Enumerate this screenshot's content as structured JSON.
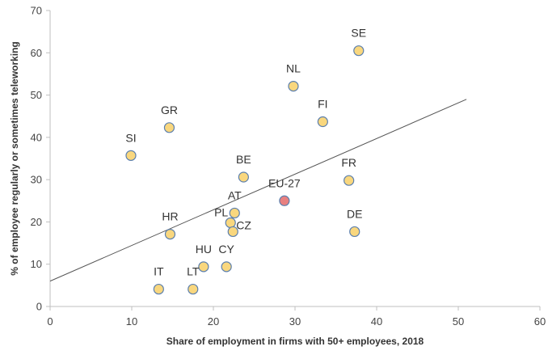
{
  "chart_data": {
    "type": "scatter",
    "title": "",
    "xlabel": "Share of employment in firms with 50+ employees, 2018",
    "ylabel": "% of employee regularly or sometimes teleworking",
    "xlim": [
      0,
      60
    ],
    "ylim": [
      0,
      70
    ],
    "xticks": [
      "0",
      "10",
      "20",
      "30",
      "40",
      "50",
      "60"
    ],
    "yticks": [
      "0",
      "10",
      "20",
      "30",
      "40",
      "50",
      "60",
      "70"
    ],
    "grid": false,
    "legend": "none",
    "colors": {
      "point_fill": "#f9d77e",
      "point_stroke": "#5b7fae",
      "highlight_fill": "#e88080",
      "highlight_label": "#e8262a",
      "label": "#333333",
      "trendline": "#555555",
      "axis": "#bfbfbf"
    },
    "points": [
      {
        "label": "SE",
        "x": 37.8,
        "y": 60.5
      },
      {
        "label": "NL",
        "x": 29.8,
        "y": 52.1
      },
      {
        "label": "FI",
        "x": 33.4,
        "y": 43.7
      },
      {
        "label": "GR",
        "x": 14.6,
        "y": 42.3
      },
      {
        "label": "SI",
        "x": 9.9,
        "y": 35.7
      },
      {
        "label": "BE",
        "x": 23.7,
        "y": 30.6
      },
      {
        "label": "FR",
        "x": 36.6,
        "y": 29.8
      },
      {
        "label": "EU-27",
        "x": 28.7,
        "y": 25.0,
        "highlight": true
      },
      {
        "label": "AT",
        "x": 22.6,
        "y": 22.1
      },
      {
        "label": "PL",
        "x": 22.1,
        "y": 19.8
      },
      {
        "label": "CZ",
        "x": 22.4,
        "y": 17.7
      },
      {
        "label": "HR",
        "x": 14.7,
        "y": 17.1
      },
      {
        "label": "DE",
        "x": 37.3,
        "y": 17.7
      },
      {
        "label": "HU",
        "x": 18.8,
        "y": 9.4
      },
      {
        "label": "CY",
        "x": 21.6,
        "y": 9.4
      },
      {
        "label": "IT",
        "x": 13.3,
        "y": 4.1
      },
      {
        "label": "LT",
        "x": 17.5,
        "y": 4.1
      }
    ],
    "trendline": {
      "x": [
        0,
        51
      ],
      "y": [
        6,
        49
      ]
    }
  }
}
